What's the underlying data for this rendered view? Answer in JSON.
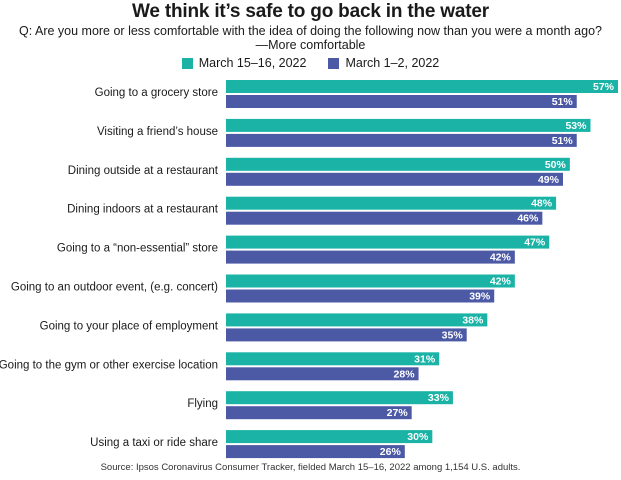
{
  "chart_data": {
    "type": "bar",
    "orientation": "horizontal",
    "title": "We think it’s safe to go back in the water",
    "subtitle_line1": "Q: Are you more or less comfortable with the idea of doing the following now than you were a month ago?",
    "subtitle_line2": "—More comfortable",
    "categories": [
      "Going to a grocery store",
      "Visiting a friend’s house",
      "Dining outside at a restaurant",
      "Dining indoors at a restaurant",
      "Going to a “non-essential” store",
      "Going to an outdoor event, (e.g. concert)",
      "Going to your place of employment",
      "Going to the gym or other exercise location",
      "Flying",
      "Using a taxi or ride share"
    ],
    "series": [
      {
        "name": "March 15–16, 2022",
        "color": "#1ab3a6",
        "values": [
          57,
          53,
          50,
          48,
          47,
          42,
          38,
          31,
          33,
          30
        ],
        "labels": [
          "57%",
          "53%",
          "50%",
          "48%",
          "47%",
          "42%",
          "38%",
          "31%",
          "33%",
          "30%"
        ]
      },
      {
        "name": "March 1–2, 2022",
        "color": "#4c5aa6",
        "values": [
          51,
          51,
          49,
          46,
          42,
          39,
          35,
          28,
          27,
          26
        ],
        "labels": [
          "51%",
          "51%",
          "49%",
          "46%",
          "42%",
          "39%",
          "35%",
          "28%",
          "27%",
          "26%"
        ]
      }
    ],
    "xlim": [
      0,
      57
    ],
    "grid": false,
    "legend_position": "top"
  },
  "source": "Source: Ipsos Coronavirus Consumer Tracker, fielded March 15–16, 2022 among 1,154 U.S. adults."
}
